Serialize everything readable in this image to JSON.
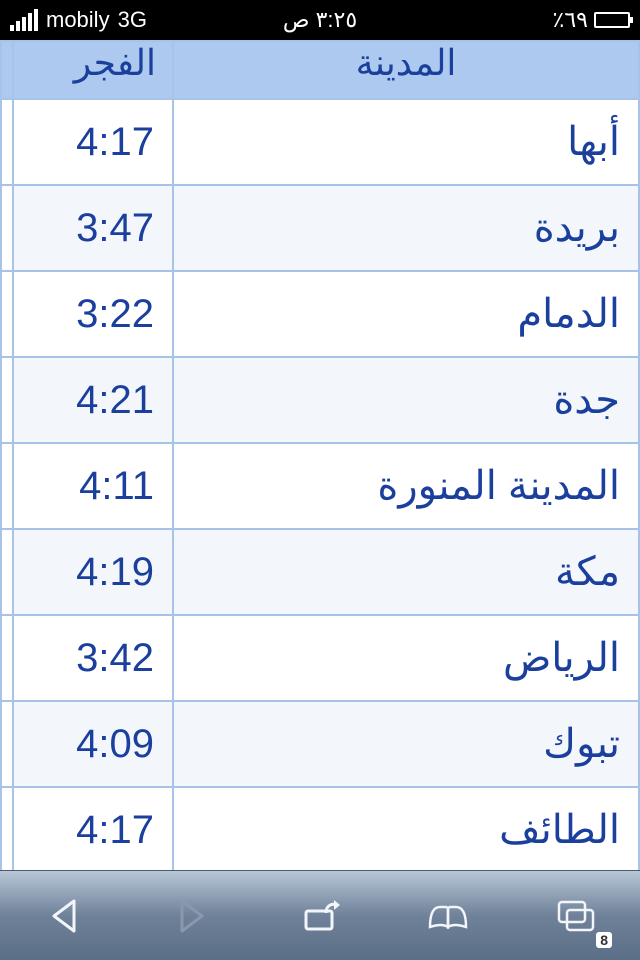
{
  "statusbar": {
    "carrier": "mobily",
    "network": "3G",
    "time": "٣:٢٥ ص",
    "battery_pct": "٪٦٩"
  },
  "table": {
    "header_time": "الفجر",
    "header_city": "المدينة",
    "rows": [
      {
        "city": "أبها",
        "time": "4:17"
      },
      {
        "city": "بريدة",
        "time": "3:47"
      },
      {
        "city": "الدمام",
        "time": "3:22"
      },
      {
        "city": "جدة",
        "time": "4:21"
      },
      {
        "city": "المدينة المنورة",
        "time": "4:11"
      },
      {
        "city": "مكة",
        "time": "4:19"
      },
      {
        "city": "الرياض",
        "time": "3:42"
      },
      {
        "city": "تبوك",
        "time": "4:09"
      },
      {
        "city": "الطائف",
        "time": "4:17"
      }
    ]
  },
  "toolbar": {
    "pages_count": "8"
  }
}
